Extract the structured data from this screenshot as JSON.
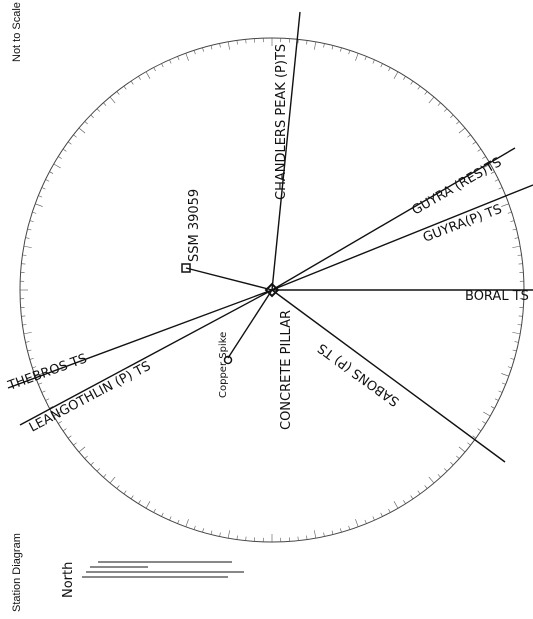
{
  "diagram": {
    "side_label_top": "Not to Scale",
    "side_label_bottom": "Station Diagram",
    "north_label": "North",
    "center_label": "CONCRETE PILLAR",
    "stations": [
      {
        "name": "CHANDLERS PEAK (P)TS"
      },
      {
        "name": "GUYRA (RES)TS"
      },
      {
        "name": "GUYRA(P) TS"
      },
      {
        "name": "BORAL TS"
      },
      {
        "name": "SABONS (P) TS"
      },
      {
        "name": "LEANGOTHLIN (P) TS"
      },
      {
        "name": "THEBROS TS"
      },
      {
        "name": "SSM 39059"
      },
      {
        "name": "Copper Spike"
      }
    ]
  }
}
